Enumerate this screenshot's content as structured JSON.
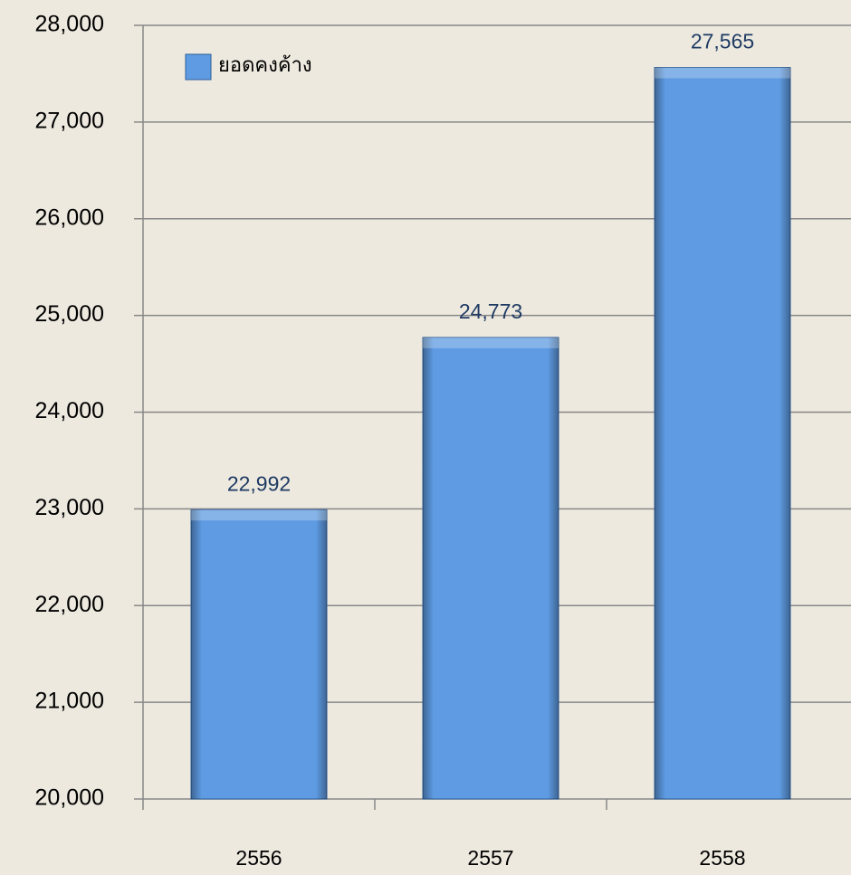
{
  "chart_data": {
    "type": "bar",
    "categories": [
      "2556",
      "2557",
      "2558"
    ],
    "series": [
      {
        "name": "ยอดคงค้าง",
        "color": "#5e9be2",
        "values": [
          22992,
          24773,
          27565
        ],
        "value_labels": [
          "22,992",
          "24,773",
          "27,565"
        ]
      }
    ],
    "ylim": [
      20000,
      28000
    ],
    "yticks": [
      {
        "value": 20000,
        "label": "20,000"
      },
      {
        "value": 21000,
        "label": "21,000"
      },
      {
        "value": 22000,
        "label": "22,000"
      },
      {
        "value": 23000,
        "label": "23,000"
      },
      {
        "value": 24000,
        "label": "24,000"
      },
      {
        "value": 25000,
        "label": "25,000"
      },
      {
        "value": 26000,
        "label": "26,000"
      },
      {
        "value": 27000,
        "label": "27,000"
      },
      {
        "value": 28000,
        "label": "28,000"
      }
    ],
    "grid": true,
    "legend": "top-left"
  }
}
